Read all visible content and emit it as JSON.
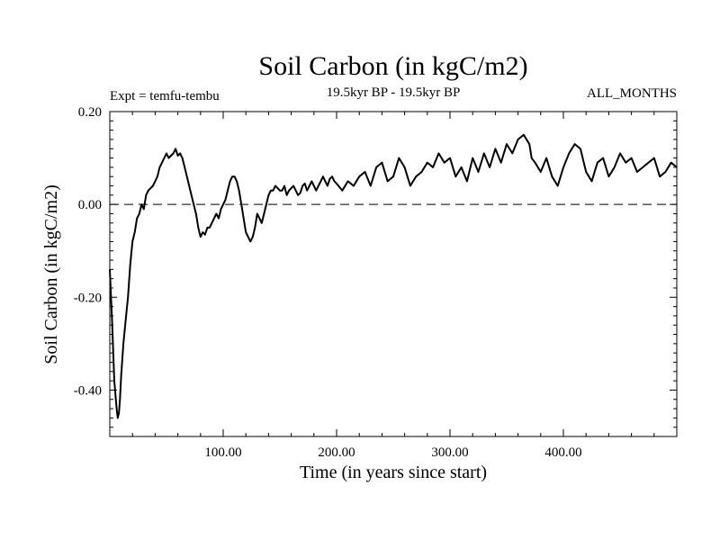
{
  "chart_data": {
    "type": "line",
    "title": "Soil Carbon (in kgC/m2)",
    "subtitle": "19.5kyr BP - 19.5kyr BP",
    "experiment_label": "Expt = temfu-tembu",
    "months_label": "ALL_MONTHS",
    "xlabel": "Time (in years since start)",
    "ylabel": "Soil Carbon (in kgC/m2)",
    "xlim": [
      0,
      500
    ],
    "ylim": [
      -0.5,
      0.2
    ],
    "x_ticks": [
      100,
      200,
      300,
      400
    ],
    "x_tick_labels": [
      "100.00",
      "200.00",
      "300.00",
      "400.00"
    ],
    "y_ticks": [
      -0.4,
      -0.2,
      0.0,
      0.2
    ],
    "y_tick_labels": [
      "-0.40",
      "-0.20",
      "0.00",
      "0.20"
    ],
    "reference_line": {
      "y": 0.0,
      "style": "dashed"
    },
    "series": [
      {
        "name": "temfu-tembu",
        "x": [
          0,
          2,
          4,
          6,
          7,
          8,
          9,
          10,
          12,
          14,
          16,
          18,
          20,
          22,
          24,
          26,
          28,
          30,
          32,
          34,
          36,
          38,
          40,
          42,
          44,
          46,
          48,
          50,
          52,
          54,
          56,
          58,
          60,
          62,
          64,
          66,
          68,
          70,
          72,
          74,
          76,
          78,
          80,
          82,
          84,
          86,
          88,
          90,
          92,
          94,
          96,
          98,
          100,
          102,
          104,
          106,
          108,
          110,
          112,
          114,
          116,
          118,
          120,
          122,
          124,
          126,
          128,
          130,
          132,
          134,
          136,
          138,
          140,
          142,
          144,
          146,
          148,
          150,
          152,
          154,
          156,
          158,
          160,
          162,
          164,
          166,
          168,
          170,
          172,
          174,
          176,
          178,
          180,
          182,
          184,
          186,
          188,
          190,
          192,
          194,
          196,
          198,
          200,
          205,
          210,
          215,
          220,
          225,
          230,
          235,
          240,
          245,
          250,
          255,
          260,
          265,
          270,
          275,
          280,
          285,
          290,
          295,
          300,
          305,
          310,
          315,
          320,
          325,
          330,
          335,
          340,
          345,
          350,
          355,
          360,
          365,
          370,
          372,
          375,
          380,
          385,
          390,
          395,
          400,
          405,
          410,
          415,
          420,
          425,
          430,
          435,
          440,
          445,
          450,
          455,
          460,
          465,
          470,
          475,
          480,
          485,
          490,
          495,
          500
        ],
        "values": [
          -0.14,
          -0.25,
          -0.38,
          -0.44,
          -0.46,
          -0.45,
          -0.42,
          -0.37,
          -0.3,
          -0.25,
          -0.2,
          -0.13,
          -0.08,
          -0.06,
          -0.03,
          -0.02,
          0.0,
          -0.01,
          0.02,
          0.03,
          0.035,
          0.04,
          0.05,
          0.06,
          0.08,
          0.09,
          0.1,
          0.11,
          0.1,
          0.105,
          0.11,
          0.12,
          0.105,
          0.11,
          0.1,
          0.08,
          0.06,
          0.04,
          0.02,
          0.0,
          -0.02,
          -0.05,
          -0.07,
          -0.06,
          -0.065,
          -0.05,
          -0.05,
          -0.04,
          -0.03,
          -0.02,
          -0.03,
          -0.01,
          0.0,
          0.01,
          0.03,
          0.05,
          0.06,
          0.06,
          0.05,
          0.03,
          0.0,
          -0.03,
          -0.06,
          -0.07,
          -0.08,
          -0.07,
          -0.05,
          -0.02,
          -0.03,
          -0.04,
          -0.02,
          0.0,
          0.02,
          0.03,
          0.03,
          0.04,
          0.035,
          0.03,
          0.03,
          0.04,
          0.02,
          0.03,
          0.035,
          0.04,
          0.03,
          0.02,
          0.025,
          0.04,
          0.045,
          0.03,
          0.04,
          0.05,
          0.04,
          0.03,
          0.04,
          0.05,
          0.06,
          0.05,
          0.04,
          0.055,
          0.06,
          0.05,
          0.045,
          0.03,
          0.05,
          0.04,
          0.06,
          0.07,
          0.04,
          0.08,
          0.09,
          0.05,
          0.06,
          0.1,
          0.08,
          0.04,
          0.06,
          0.07,
          0.09,
          0.08,
          0.11,
          0.09,
          0.1,
          0.06,
          0.08,
          0.05,
          0.1,
          0.07,
          0.11,
          0.08,
          0.12,
          0.09,
          0.13,
          0.11,
          0.14,
          0.15,
          0.13,
          0.1,
          0.09,
          0.07,
          0.1,
          0.06,
          0.04,
          0.08,
          0.11,
          0.13,
          0.12,
          0.07,
          0.05,
          0.09,
          0.1,
          0.06,
          0.08,
          0.11,
          0.09,
          0.1,
          0.07,
          0.08,
          0.09,
          0.1,
          0.06,
          0.07,
          0.09,
          0.08
        ]
      }
    ]
  }
}
